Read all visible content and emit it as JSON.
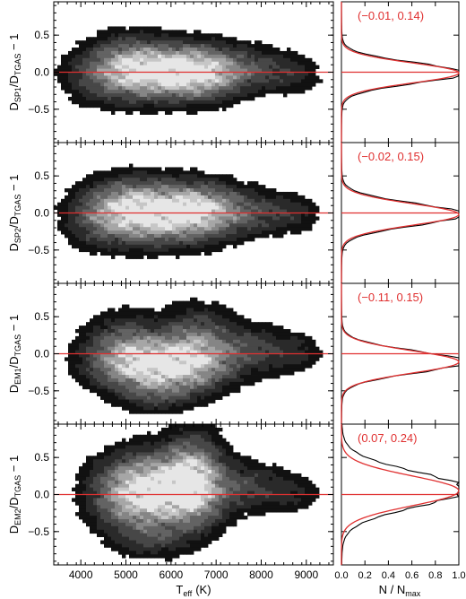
{
  "figure": {
    "xlabel_main": "T",
    "xlabel_sub": "eff",
    "xlabel_unit": "(K)",
    "xlabel_right_main": "N / N",
    "xlabel_right_sub": "max",
    "line_color": "#e03030"
  },
  "chart_data": [
    {
      "type": "heatmap",
      "panel": "SP1",
      "ylabel_prefix": "D",
      "ylabel_sub": "SP1",
      "ylabel_mid": "/D",
      "ylabel_sub2": "TGAS",
      "ylabel_suffix": " − 1",
      "xlim": [
        3400,
        9600
      ],
      "ylim": [
        -0.95,
        0.95
      ],
      "xticks": [
        4000,
        5000,
        6000,
        7000,
        8000,
        9000
      ],
      "yticks": [
        -0.5,
        0.0,
        0.5
      ],
      "reference_line_y": 0.0,
      "texture": [
        1.2,
        0.0,
        0.3,
        2.0,
        0.5
      ],
      "blobs": [
        {
          "x": 5900,
          "y": 0.0,
          "sx": 900,
          "sy": 0.22,
          "a": 1.0
        },
        {
          "x": 5100,
          "y": 0.1,
          "sx": 500,
          "sy": 0.25,
          "a": 0.35
        },
        {
          "x": 6700,
          "y": 0.0,
          "sx": 500,
          "sy": 0.2,
          "a": 0.45
        },
        {
          "x": 7800,
          "y": 0.05,
          "sx": 600,
          "sy": 0.18,
          "a": 0.22
        },
        {
          "x": 8700,
          "y": -0.05,
          "sx": 400,
          "sy": 0.15,
          "a": 0.12
        },
        {
          "x": 4400,
          "y": -0.05,
          "sx": 500,
          "sy": 0.25,
          "a": 0.15
        }
      ],
      "histogram": {
        "stats_label": "(−0.01, 0.14)",
        "mean": -0.01,
        "sigma": 0.14,
        "gauss_mean": -0.01,
        "gauss_sigma": 0.135,
        "xlim": [
          0,
          1
        ],
        "xticks": [
          0.0,
          0.2,
          0.4,
          0.6,
          0.8,
          1.0
        ]
      }
    },
    {
      "type": "heatmap",
      "panel": "SP2",
      "ylabel_prefix": "D",
      "ylabel_sub": "SP2",
      "ylabel_mid": "/D",
      "ylabel_sub2": "TGAS",
      "ylabel_suffix": " − 1",
      "xlim": [
        3400,
        9600
      ],
      "ylim": [
        -0.95,
        0.95
      ],
      "xticks": [
        4000,
        5000,
        6000,
        7000,
        8000,
        9000
      ],
      "yticks": [
        -0.5,
        0.0,
        0.5
      ],
      "reference_line_y": 0.0,
      "texture": [
        2.4,
        1.1,
        0.7,
        0.4,
        2.2
      ],
      "blobs": [
        {
          "x": 5800,
          "y": 0.0,
          "sx": 900,
          "sy": 0.24,
          "a": 1.0
        },
        {
          "x": 5000,
          "y": 0.05,
          "sx": 500,
          "sy": 0.25,
          "a": 0.4
        },
        {
          "x": 6700,
          "y": 0.05,
          "sx": 550,
          "sy": 0.2,
          "a": 0.45
        },
        {
          "x": 7900,
          "y": 0.0,
          "sx": 600,
          "sy": 0.18,
          "a": 0.22
        },
        {
          "x": 8800,
          "y": 0.0,
          "sx": 350,
          "sy": 0.15,
          "a": 0.1
        },
        {
          "x": 4300,
          "y": -0.1,
          "sx": 400,
          "sy": 0.25,
          "a": 0.15
        }
      ],
      "histogram": {
        "stats_label": "(−0.02, 0.15)",
        "mean": -0.02,
        "sigma": 0.15,
        "gauss_mean": -0.02,
        "gauss_sigma": 0.145,
        "xlim": [
          0,
          1
        ],
        "xticks": [
          0.0,
          0.2,
          0.4,
          0.6,
          0.8,
          1.0
        ]
      }
    },
    {
      "type": "heatmap",
      "panel": "EM1",
      "ylabel_prefix": "D",
      "ylabel_sub": "EM1",
      "ylabel_mid": "/D",
      "ylabel_sub2": "TGAS",
      "ylabel_suffix": " − 1",
      "xlim": [
        3400,
        9600
      ],
      "ylim": [
        -0.95,
        0.95
      ],
      "xticks": [
        4000,
        5000,
        6000,
        7000,
        8000,
        9000
      ],
      "yticks": [
        -0.5,
        0.0,
        0.5
      ],
      "reference_line_y": 0.0,
      "texture": [
        0.6,
        1.9,
        2.7,
        1.3,
        0.9
      ],
      "blobs": [
        {
          "x": 5800,
          "y": -0.15,
          "sx": 800,
          "sy": 0.22,
          "a": 1.0
        },
        {
          "x": 5000,
          "y": 0.05,
          "sx": 550,
          "sy": 0.28,
          "a": 0.4
        },
        {
          "x": 6600,
          "y": 0.1,
          "sx": 500,
          "sy": 0.3,
          "a": 0.45
        },
        {
          "x": 7800,
          "y": 0.05,
          "sx": 600,
          "sy": 0.2,
          "a": 0.25
        },
        {
          "x": 8800,
          "y": 0.0,
          "sx": 350,
          "sy": 0.15,
          "a": 0.12
        },
        {
          "x": 5700,
          "y": -0.55,
          "sx": 500,
          "sy": 0.15,
          "a": 0.2
        }
      ],
      "histogram": {
        "stats_label": "(−0.11, 0.15)",
        "mean": -0.11,
        "sigma": 0.15,
        "gauss_mean": -0.11,
        "gauss_sigma": 0.15,
        "xlim": [
          0,
          1
        ],
        "xticks": [
          0.0,
          0.2,
          0.4,
          0.6,
          0.8,
          1.0
        ]
      }
    },
    {
      "type": "heatmap",
      "panel": "EM2",
      "ylabel_prefix": "D",
      "ylabel_sub": "EM2",
      "ylabel_mid": "/D",
      "ylabel_sub2": "TGAS",
      "ylabel_suffix": " − 1",
      "xlim": [
        3400,
        9600
      ],
      "ylim": [
        -0.95,
        0.95
      ],
      "xticks": [
        4000,
        5000,
        6000,
        7000,
        8000,
        9000
      ],
      "yticks": [
        -0.5,
        0.0,
        0.5
      ],
      "reference_line_y": 0.0,
      "texture": [
        1.7,
        2.9,
        0.2,
        2.6,
        1.4
      ],
      "blobs": [
        {
          "x": 5800,
          "y": 0.05,
          "sx": 700,
          "sy": 0.3,
          "a": 1.0
        },
        {
          "x": 6500,
          "y": 0.2,
          "sx": 400,
          "sy": 0.35,
          "a": 0.7
        },
        {
          "x": 5000,
          "y": 0.0,
          "sx": 500,
          "sy": 0.3,
          "a": 0.4
        },
        {
          "x": 7700,
          "y": 0.1,
          "sx": 600,
          "sy": 0.2,
          "a": 0.25
        },
        {
          "x": 8800,
          "y": 0.0,
          "sx": 350,
          "sy": 0.15,
          "a": 0.1
        },
        {
          "x": 5600,
          "y": -0.6,
          "sx": 500,
          "sy": 0.15,
          "a": 0.2
        }
      ],
      "histogram": {
        "stats_label": "(0.07, 0.24)",
        "mean": 0.07,
        "sigma": 0.24,
        "gauss_mean": 0.05,
        "gauss_sigma": 0.2,
        "xlim": [
          0,
          1
        ],
        "xticks": [
          0.0,
          0.2,
          0.4,
          0.6,
          0.8,
          1.0
        ]
      }
    }
  ]
}
